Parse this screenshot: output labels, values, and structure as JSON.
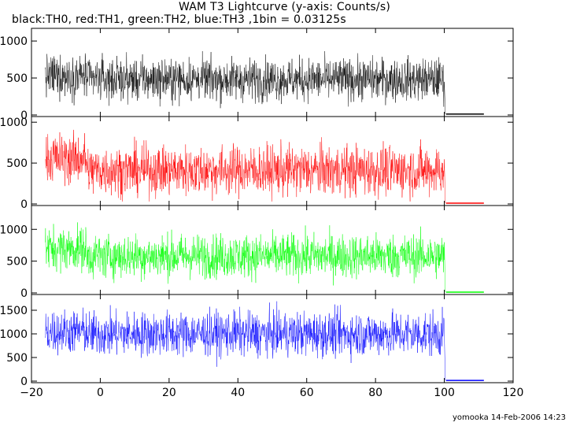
{
  "title": "WAM T3 Lightcurve (y-axis: Counts/s)",
  "subtitle_parts": [
    {
      "text": "black:TH0, ",
      "color": "#000000"
    },
    {
      "text": "red:TH1, ",
      "color": "#000000"
    },
    {
      "text": "green:TH2, ",
      "color": "#000000"
    },
    {
      "text": "blue:TH3 ,1bin = 0.03125s",
      "color": "#000000"
    }
  ],
  "footer": "yomooka 14-Feb-2006 14:23",
  "chart_data": {
    "type": "line",
    "title": "WAM T3 Lightcurve (y-axis: Counts/s)",
    "subtitle": "black:TH0, red:TH1, green:TH2, blue:TH3 ,1bin = 0.03125s",
    "xlim": [
      -20,
      120
    ],
    "xticks": [
      -20,
      0,
      20,
      40,
      60,
      80,
      100,
      120
    ],
    "xtick_labels": [
      "−20",
      "0",
      "20",
      "40",
      "60",
      "80",
      "100",
      "120"
    ],
    "grid": false,
    "panels": [
      {
        "name": "TH0",
        "color": "#000000",
        "ylim": [
          0,
          1150
        ],
        "yticks": [
          0,
          500,
          1000
        ],
        "x_start": -16,
        "x_end": 100,
        "mean_pre": 530,
        "mean_main": 480,
        "spread": 140,
        "tail_x": [
          100.5,
          111.5
        ],
        "tail_y": 12
      },
      {
        "name": "TH1",
        "color": "#ff0000",
        "ylim": [
          0,
          1050
        ],
        "yticks": [
          0,
          500,
          1000
        ],
        "x_start": -16,
        "x_end": 100,
        "mean_pre": 560,
        "mean_main": 410,
        "spread": 150,
        "tail_x": [
          100.5,
          111.5
        ],
        "tail_y": 10
      },
      {
        "name": "TH2",
        "color": "#00ff00",
        "ylim": [
          0,
          1350
        ],
        "yticks": [
          0,
          500,
          1000
        ],
        "x_start": -16,
        "x_end": 100,
        "mean_pre": 700,
        "mean_main": 580,
        "spread": 170,
        "tail_x": [
          100.5,
          111.5
        ],
        "tail_y": 12
      },
      {
        "name": "TH3",
        "color": "#0000ff",
        "ylim": [
          0,
          1800
        ],
        "yticks": [
          0,
          500,
          1000,
          1500
        ],
        "x_start": -16,
        "x_end": 100,
        "mean_pre": 1050,
        "mean_main": 1000,
        "spread": 230,
        "tail_x": [
          100.5,
          111.5
        ],
        "tail_y": 15
      }
    ]
  }
}
